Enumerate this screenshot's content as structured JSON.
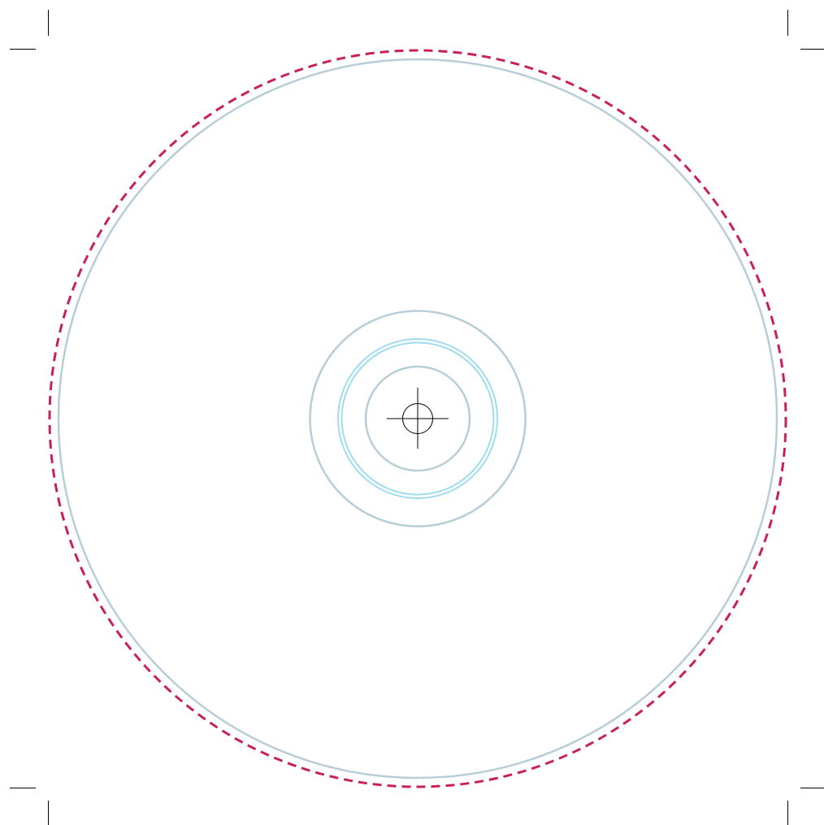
{
  "template": {
    "colors": {
      "background": "#ffffff",
      "bleed_line": "#c8215a",
      "trim_line": "#b7cdd8",
      "hub_line": "#9fdcef",
      "registration_mark": "#000000",
      "crop_mark": "#000000"
    },
    "guides": [
      {
        "name": "bleed-circle",
        "style": "dashed",
        "color_key": "bleed_line"
      },
      {
        "name": "outer-trim-circle",
        "style": "solid",
        "color_key": "trim_line"
      },
      {
        "name": "inner-print-circle",
        "style": "solid",
        "color_key": "trim_line"
      },
      {
        "name": "stacking-ring-outer",
        "style": "solid",
        "color_key": "hub_line"
      },
      {
        "name": "stacking-ring-inner",
        "style": "solid",
        "color_key": "hub_line"
      },
      {
        "name": "center-hole-circle",
        "style": "solid",
        "color_key": "trim_line"
      }
    ],
    "registration_mark": {
      "icon": "crosshair-registration-icon"
    },
    "crop_marks": {
      "corners": [
        "top-left",
        "top-right",
        "bottom-left",
        "bottom-right"
      ],
      "icon": "crop-mark-icon"
    }
  }
}
